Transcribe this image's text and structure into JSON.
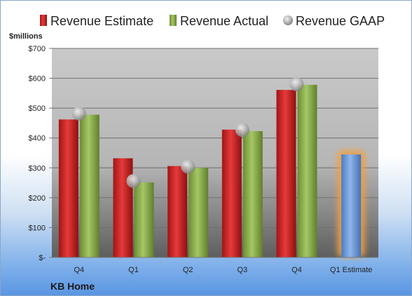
{
  "chart_data": {
    "type": "bar",
    "company": "KB Home",
    "ylabel": "$millions",
    "ylim": [
      0,
      700
    ],
    "yticks": [
      0,
      100,
      200,
      300,
      400,
      500,
      600,
      700
    ],
    "ytick_labels": [
      "$-",
      "$100",
      "$200",
      "$300",
      "$400",
      "$500",
      "$600",
      "$700"
    ],
    "categories": [
      "Q4",
      "Q1",
      "Q2",
      "Q3",
      "Q4",
      "Q1 Estimate"
    ],
    "series": [
      {
        "name": "Revenue Estimate",
        "type": "bar",
        "color": "#d42a2a",
        "values": [
          462,
          332,
          306,
          428,
          561,
          null
        ]
      },
      {
        "name": "Revenue Actual",
        "type": "bar",
        "color": "#8db04f",
        "values": [
          478,
          251,
          300,
          423,
          578,
          null
        ]
      },
      {
        "name": "Revenue GAAP",
        "type": "marker",
        "color": "#b8b8b8",
        "values": [
          482,
          256,
          304,
          427,
          580,
          null
        ]
      }
    ],
    "highlight": {
      "category": "Q1 Estimate",
      "value": 345,
      "color": "#5b8fd6",
      "glow": "#f0a040"
    },
    "legend_position": "top",
    "grid": true
  }
}
